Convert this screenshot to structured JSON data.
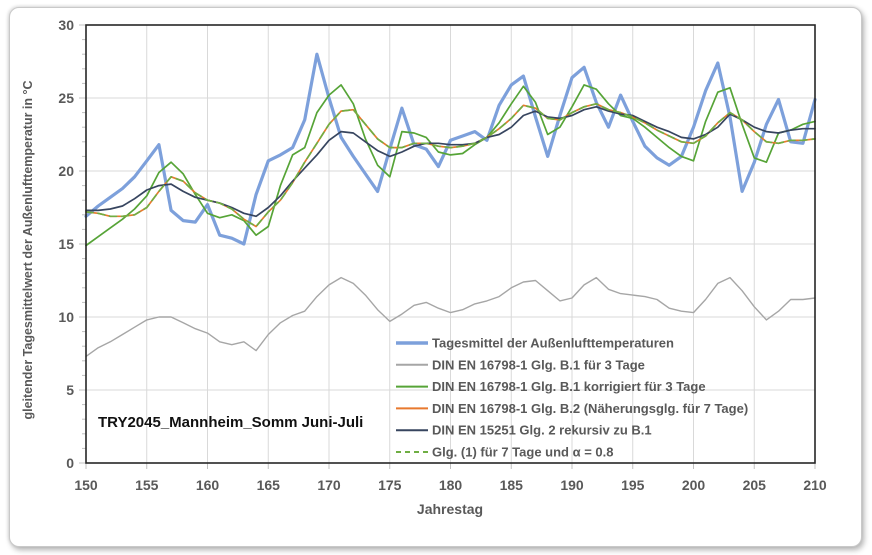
{
  "chart_data": {
    "type": "line",
    "title": "",
    "xlabel": "Jahrestag",
    "ylabel": "gleitender Tagesmittelwert der Außenlufttemperatur in °C",
    "annotation": "TRY2045_Mannheim_Somm Juni-Juli",
    "xlim": [
      150,
      210
    ],
    "ylim": [
      0,
      30
    ],
    "xticks": [
      150,
      155,
      160,
      165,
      170,
      175,
      180,
      185,
      190,
      195,
      200,
      205,
      210
    ],
    "yticks": [
      0,
      5,
      10,
      15,
      20,
      25,
      30
    ],
    "y_minor_tick_step": 1,
    "grid": true,
    "legend_position": "inside-bottom-right",
    "colors": {
      "gridline": "#D9D9D9",
      "axis_border": "#262626",
      "tick": "#C0C0C0",
      "tick_label": "#595959",
      "annotation_text": "#111111",
      "background": "#FFFFFF"
    },
    "x": [
      150,
      151,
      152,
      153,
      154,
      155,
      156,
      157,
      158,
      159,
      160,
      161,
      162,
      163,
      164,
      165,
      166,
      167,
      168,
      169,
      170,
      171,
      172,
      173,
      174,
      175,
      176,
      177,
      178,
      179,
      180,
      181,
      182,
      183,
      184,
      185,
      186,
      187,
      188,
      189,
      190,
      191,
      192,
      193,
      194,
      195,
      196,
      197,
      198,
      199,
      200,
      201,
      202,
      203,
      204,
      205,
      206,
      207,
      208,
      209,
      210
    ],
    "series": [
      {
        "name": "Tagesmittel der Außenlufttemperaturen",
        "color": "#7DA0DB",
        "width": 3.2,
        "dash": null,
        "values": [
          16.9,
          17.6,
          18.2,
          18.8,
          19.6,
          20.7,
          21.8,
          17.3,
          16.6,
          16.5,
          17.7,
          15.6,
          15.4,
          15.0,
          18.4,
          20.7,
          21.1,
          21.6,
          23.5,
          28.0,
          25.0,
          22.3,
          21.0,
          19.8,
          18.6,
          21.5,
          24.3,
          21.8,
          21.5,
          20.3,
          22.1,
          22.4,
          22.7,
          22.1,
          24.5,
          25.9,
          26.5,
          23.7,
          21.0,
          23.8,
          26.4,
          27.1,
          24.7,
          23.0,
          25.2,
          23.4,
          21.7,
          20.9,
          20.4,
          21.0,
          23.0,
          25.5,
          27.4,
          23.7,
          18.6,
          20.6,
          23.2,
          24.9,
          22.0,
          21.9,
          24.9
        ]
      },
      {
        "name": "DIN EN 16798-1 Glg. B.1 für 3 Tage",
        "color": "#A6A6A6",
        "width": 1.4,
        "dash": null,
        "values": [
          7.3,
          7.9,
          8.3,
          8.8,
          9.3,
          9.8,
          10.0,
          10.0,
          9.6,
          9.2,
          8.9,
          8.3,
          8.1,
          8.3,
          7.7,
          8.8,
          9.6,
          10.1,
          10.4,
          11.4,
          12.2,
          12.7,
          12.3,
          11.5,
          10.5,
          9.7,
          10.2,
          10.8,
          11.0,
          10.6,
          10.3,
          10.5,
          10.9,
          11.1,
          11.4,
          12.0,
          12.4,
          12.5,
          11.8,
          11.1,
          11.3,
          12.2,
          12.7,
          11.9,
          11.6,
          11.5,
          11.4,
          11.2,
          10.6,
          10.4,
          10.3,
          11.2,
          12.3,
          12.7,
          11.8,
          10.7,
          9.8,
          10.4,
          11.2,
          11.2,
          11.3
        ]
      },
      {
        "name": "DIN EN 16798-1 Glg. B.1 korrigiert für 3 Tage",
        "color": "#56A437",
        "width": 1.7,
        "dash": null,
        "values": [
          14.9,
          15.5,
          16.1,
          16.7,
          17.4,
          18.3,
          19.9,
          20.6,
          19.8,
          18.4,
          17.1,
          16.8,
          17.0,
          16.6,
          15.6,
          16.2,
          19.0,
          21.1,
          21.6,
          24.0,
          25.2,
          25.9,
          24.6,
          22.2,
          20.4,
          19.6,
          22.7,
          22.6,
          22.3,
          21.3,
          21.1,
          21.2,
          21.8,
          22.3,
          23.3,
          24.6,
          25.8,
          24.7,
          22.5,
          23.0,
          24.4,
          25.9,
          25.6,
          24.6,
          23.8,
          23.6,
          23.0,
          22.3,
          21.6,
          21.0,
          20.7,
          23.4,
          25.4,
          25.7,
          23.2,
          20.9,
          20.6,
          22.6,
          22.8,
          23.2,
          23.4
        ]
      },
      {
        "name": "DIN EN 16798-1 Glg. B.2 (Näherungsglg. für 7 Tage)",
        "color": "#E8792E",
        "width": 1.7,
        "dash": null,
        "values": [
          17.2,
          17.1,
          16.9,
          16.9,
          17.0,
          17.5,
          18.6,
          19.6,
          19.3,
          18.5,
          18.0,
          17.8,
          17.4,
          16.7,
          16.2,
          17.2,
          18.0,
          19.2,
          20.6,
          21.9,
          23.2,
          24.1,
          24.2,
          23.2,
          22.2,
          21.6,
          21.6,
          21.9,
          21.9,
          21.7,
          21.6,
          21.7,
          21.9,
          22.3,
          22.9,
          23.6,
          24.5,
          24.3,
          23.6,
          23.5,
          24.0,
          24.4,
          24.6,
          24.2,
          24.0,
          23.7,
          23.3,
          22.8,
          22.4,
          22.0,
          21.9,
          22.4,
          23.3,
          24.0,
          23.5,
          22.7,
          22.0,
          21.9,
          22.1,
          22.1,
          22.2
        ]
      },
      {
        "name": "DIN EN 15251 Glg. 2 rekursiv zu B.1",
        "color": "#37455F",
        "width": 1.7,
        "dash": null,
        "values": [
          17.3,
          17.3,
          17.4,
          17.6,
          18.1,
          18.7,
          19.0,
          19.1,
          18.6,
          18.2,
          18.0,
          17.8,
          17.5,
          17.1,
          16.9,
          17.5,
          18.3,
          19.3,
          20.2,
          21.1,
          22.1,
          22.7,
          22.6,
          22.0,
          21.4,
          21.0,
          21.3,
          21.7,
          21.9,
          21.9,
          21.8,
          21.8,
          21.9,
          22.3,
          22.5,
          23.0,
          23.8,
          24.1,
          23.7,
          23.6,
          23.8,
          24.2,
          24.4,
          24.1,
          23.9,
          23.8,
          23.4,
          23.0,
          22.7,
          22.3,
          22.2,
          22.5,
          23.0,
          23.9,
          23.5,
          23.0,
          22.7,
          22.6,
          22.8,
          22.9,
          22.9
        ]
      },
      {
        "name": "Glg. (1) für 7 Tage und α = 0.8",
        "color": "#6FAE43",
        "width": 1.7,
        "dash": "7 5",
        "values": [
          17.2,
          17.1,
          16.9,
          16.9,
          17.0,
          17.5,
          18.6,
          19.6,
          19.3,
          18.5,
          18.0,
          17.8,
          17.4,
          16.7,
          16.2,
          17.2,
          18.0,
          19.2,
          20.6,
          21.9,
          23.2,
          24.1,
          24.2,
          23.2,
          22.2,
          21.6,
          21.6,
          21.9,
          21.9,
          21.7,
          21.6,
          21.7,
          21.9,
          22.3,
          22.9,
          23.6,
          24.5,
          24.3,
          23.6,
          23.5,
          24.0,
          24.4,
          24.6,
          24.2,
          24.0,
          23.7,
          23.3,
          22.8,
          22.4,
          22.0,
          21.9,
          22.4,
          23.3,
          24.0,
          23.5,
          22.7,
          22.0,
          21.9,
          22.1,
          22.1,
          22.2
        ]
      }
    ]
  }
}
